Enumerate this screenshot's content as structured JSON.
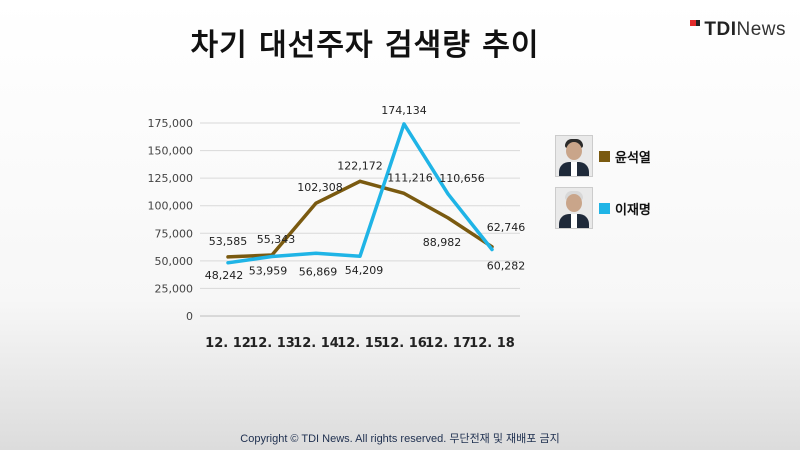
{
  "logo": {
    "mark_text_bold": "TDI",
    "mark_text": "News"
  },
  "footer": {
    "copyright": "Copyright © TDI News. All rights reserved. 무단전재 및 재배포 금지"
  },
  "colors": {
    "series1": "#7a5a10",
    "series2": "#1fb4e6",
    "grid": "#d9d9d9"
  },
  "legend": [
    {
      "label": "윤석열",
      "icon": "portrait-photo"
    },
    {
      "label": "이재명",
      "icon": "portrait-photo"
    }
  ],
  "chart_data": {
    "type": "line",
    "title": "차기 대선주자 검색량 추이",
    "categories": [
      "12. 12",
      "12. 13",
      "12. 14",
      "12. 15",
      "12. 16",
      "12. 17",
      "12. 18"
    ],
    "ylim": [
      0,
      175000
    ],
    "yticks": [
      0,
      25000,
      50000,
      75000,
      100000,
      125000,
      150000,
      175000
    ],
    "ytick_labels": [
      "0",
      "25,000",
      "50,000",
      "75,000",
      "100,000",
      "125,000",
      "150,000",
      "175,000"
    ],
    "grid": true,
    "legend_position": "right",
    "series": [
      {
        "name": "윤석열",
        "values": [
          53585,
          55343,
          102308,
          122172,
          111216,
          88982,
          62746
        ],
        "labels": [
          "53,585",
          "55,343",
          "102,308",
          "122,172",
          "111,216",
          "88,982",
          "62,746"
        ]
      },
      {
        "name": "이재명",
        "values": [
          48242,
          53959,
          56869,
          54209,
          174134,
          110656,
          60282
        ],
        "labels": [
          "48,242",
          "53,959",
          "56,869",
          "54,209",
          "174,134",
          "110,656",
          "60,282"
        ]
      }
    ]
  }
}
